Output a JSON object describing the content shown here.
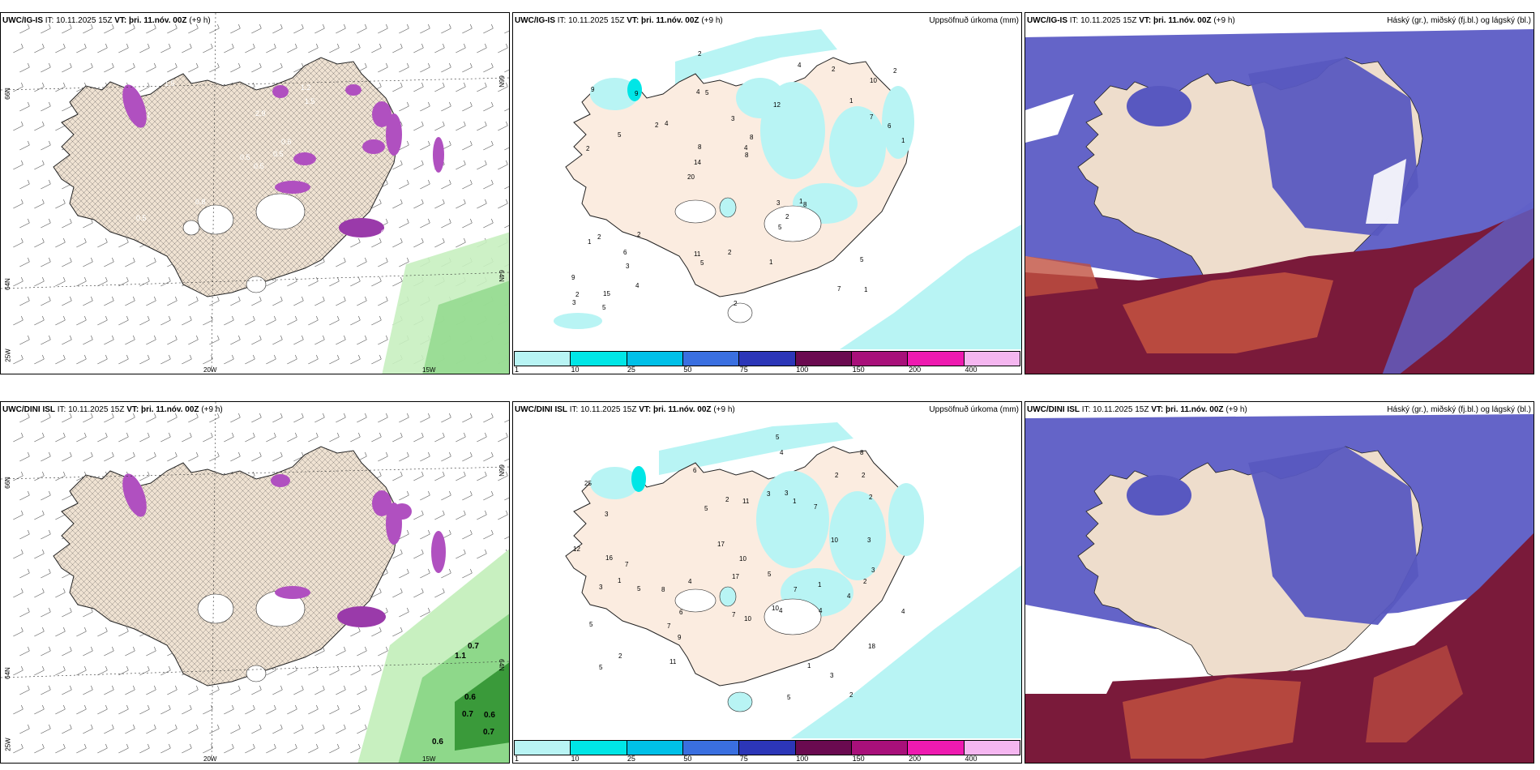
{
  "header": {
    "it_label": "IT:",
    "it_value": "10.11.2025 15Z",
    "vt_label": "VT:",
    "vt_value": "þri. 11.nóv. 00Z",
    "lead": "(+9 h)"
  },
  "rows": [
    {
      "model": "UWC/IG-IS"
    },
    {
      "model": "UWC/DINI ISL"
    }
  ],
  "precip_title": "Uppsöfnuð úrkoma (mm)",
  "cloud_title": "Háský (gr.), miðský (fj.bl.) og lágský (bl.)",
  "axis_labels": {
    "lon_20w": "20W",
    "lon_15w": "15W",
    "lat_66n": "66N",
    "lat_64n": "64N",
    "lat_25w": "25W",
    "lat_right_66": "66N",
    "lat_right_64": "64N"
  },
  "colorbar": {
    "ticks": [
      "1",
      "10",
      "25",
      "50",
      "75",
      "100",
      "150",
      "200",
      "400"
    ],
    "colors": [
      "#b8f4f4",
      "#00e6e6",
      "#00c0e8",
      "#3a6fe0",
      "#2c36b8",
      "#6a0a50",
      "#a8107a",
      "#ee1ab0",
      "#f5b6f0"
    ]
  },
  "precip_values_top": [
    "1",
    "2",
    "10",
    "20",
    "12",
    "15",
    "4",
    "3",
    "2",
    "4",
    "9",
    "3",
    "5",
    "8",
    "8",
    "9",
    "2",
    "1",
    "3",
    "7",
    "14",
    "11",
    "8",
    "9",
    "4",
    "2",
    "7",
    "5",
    "1",
    "2",
    "2",
    "5",
    "5",
    "4",
    "6",
    "4",
    "2",
    "5",
    "8",
    "1",
    "1",
    "2",
    "2",
    "1",
    "6",
    "5",
    "3",
    "2",
    "2"
  ],
  "precip_values_bottom": [
    "2",
    "1",
    "10",
    "25",
    "18",
    "3",
    "2",
    "8",
    "7",
    "2",
    "1",
    "3",
    "9",
    "6",
    "5",
    "5",
    "1",
    "10",
    "12",
    "5",
    "8",
    "11",
    "10",
    "4",
    "3",
    "16",
    "5",
    "17",
    "17",
    "2",
    "4",
    "3",
    "7",
    "3",
    "5",
    "4",
    "2",
    "1",
    "2",
    "5",
    "6",
    "10",
    "11",
    "5",
    "4",
    "7",
    "2",
    "4",
    "3",
    "7",
    "7",
    "3",
    "4"
  ],
  "wind_values_bottom": [
    "0.6",
    "0.6",
    "0.6",
    "0.7",
    "1.1",
    "0.7",
    "0.7"
  ],
  "wind_values_top": [
    "0.5",
    "1",
    "0.5",
    "0.5",
    "0.6",
    "0.8",
    "1.2",
    "2.9",
    "1.5",
    "0.5",
    "1.5",
    "0.5"
  ]
}
